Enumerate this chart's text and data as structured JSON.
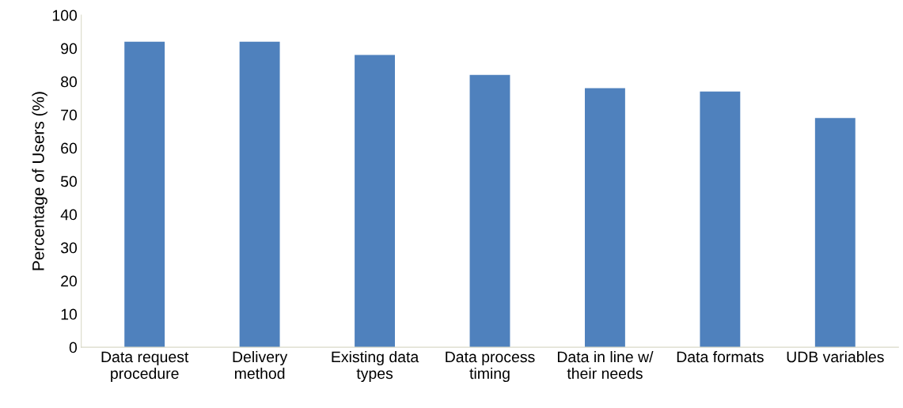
{
  "chart_data": {
    "type": "bar",
    "ylabel": "Percentage of Users (%)",
    "categories": [
      "Data request\nprocedure",
      "Delivery\nmethod",
      "Existing data\ntypes",
      "Data process\ntiming",
      "Data in line w/\ntheir needs",
      "Data formats",
      "UDB variables"
    ],
    "values": [
      92,
      92,
      88,
      82,
      78,
      77,
      69
    ],
    "color": "#4f81bd",
    "ylim": [
      0,
      100
    ],
    "yticks": [
      0,
      10,
      20,
      30,
      40,
      50,
      60,
      70,
      80,
      90,
      100
    ],
    "grid": false,
    "legend": false
  }
}
